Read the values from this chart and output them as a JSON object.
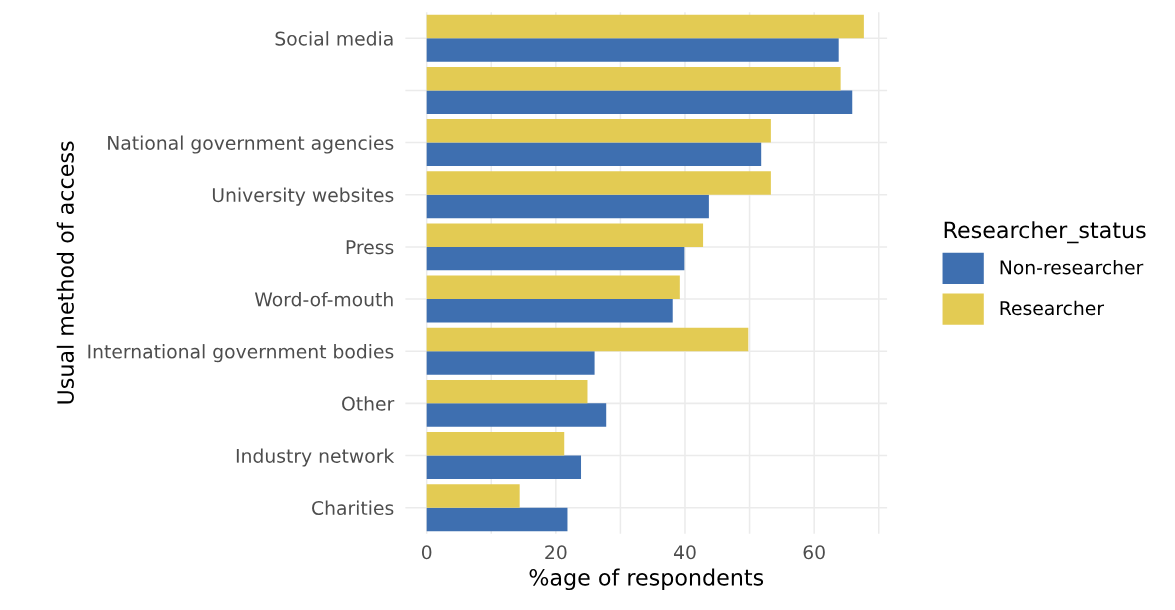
{
  "chart_data": {
    "type": "bar",
    "orientation": "horizontal",
    "xlabel": "%age of respondents",
    "ylabel": "Usual method of access",
    "legend_title": "Researcher_status",
    "categories": [
      "Social media",
      null,
      "National government agencies",
      "University websites",
      "Press",
      "Word-of-mouth",
      "International government bodies",
      "Other",
      "Industry network",
      "Charities"
    ],
    "series": [
      {
        "name": "Non-researcher",
        "color": "#3e6fb0",
        "values": [
          63.8,
          65.9,
          51.8,
          43.7,
          39.9,
          38.1,
          26.0,
          27.8,
          23.9,
          21.8
        ]
      },
      {
        "name": "Researcher",
        "color": "#e3cb53",
        "values": [
          67.7,
          64.1,
          53.3,
          53.3,
          42.8,
          39.2,
          49.8,
          24.9,
          21.3,
          14.4
        ]
      }
    ],
    "xlim": [
      -3.3,
      71.3
    ],
    "xticks": [
      0,
      {
        "value": 10,
        "label": null
      },
      20,
      {
        "value": 30,
        "label": null
      },
      40,
      {
        "value": 50,
        "label": null
      },
      60,
      {
        "value": 70,
        "label": null
      }
    ],
    "grid": true,
    "legend": "right"
  }
}
